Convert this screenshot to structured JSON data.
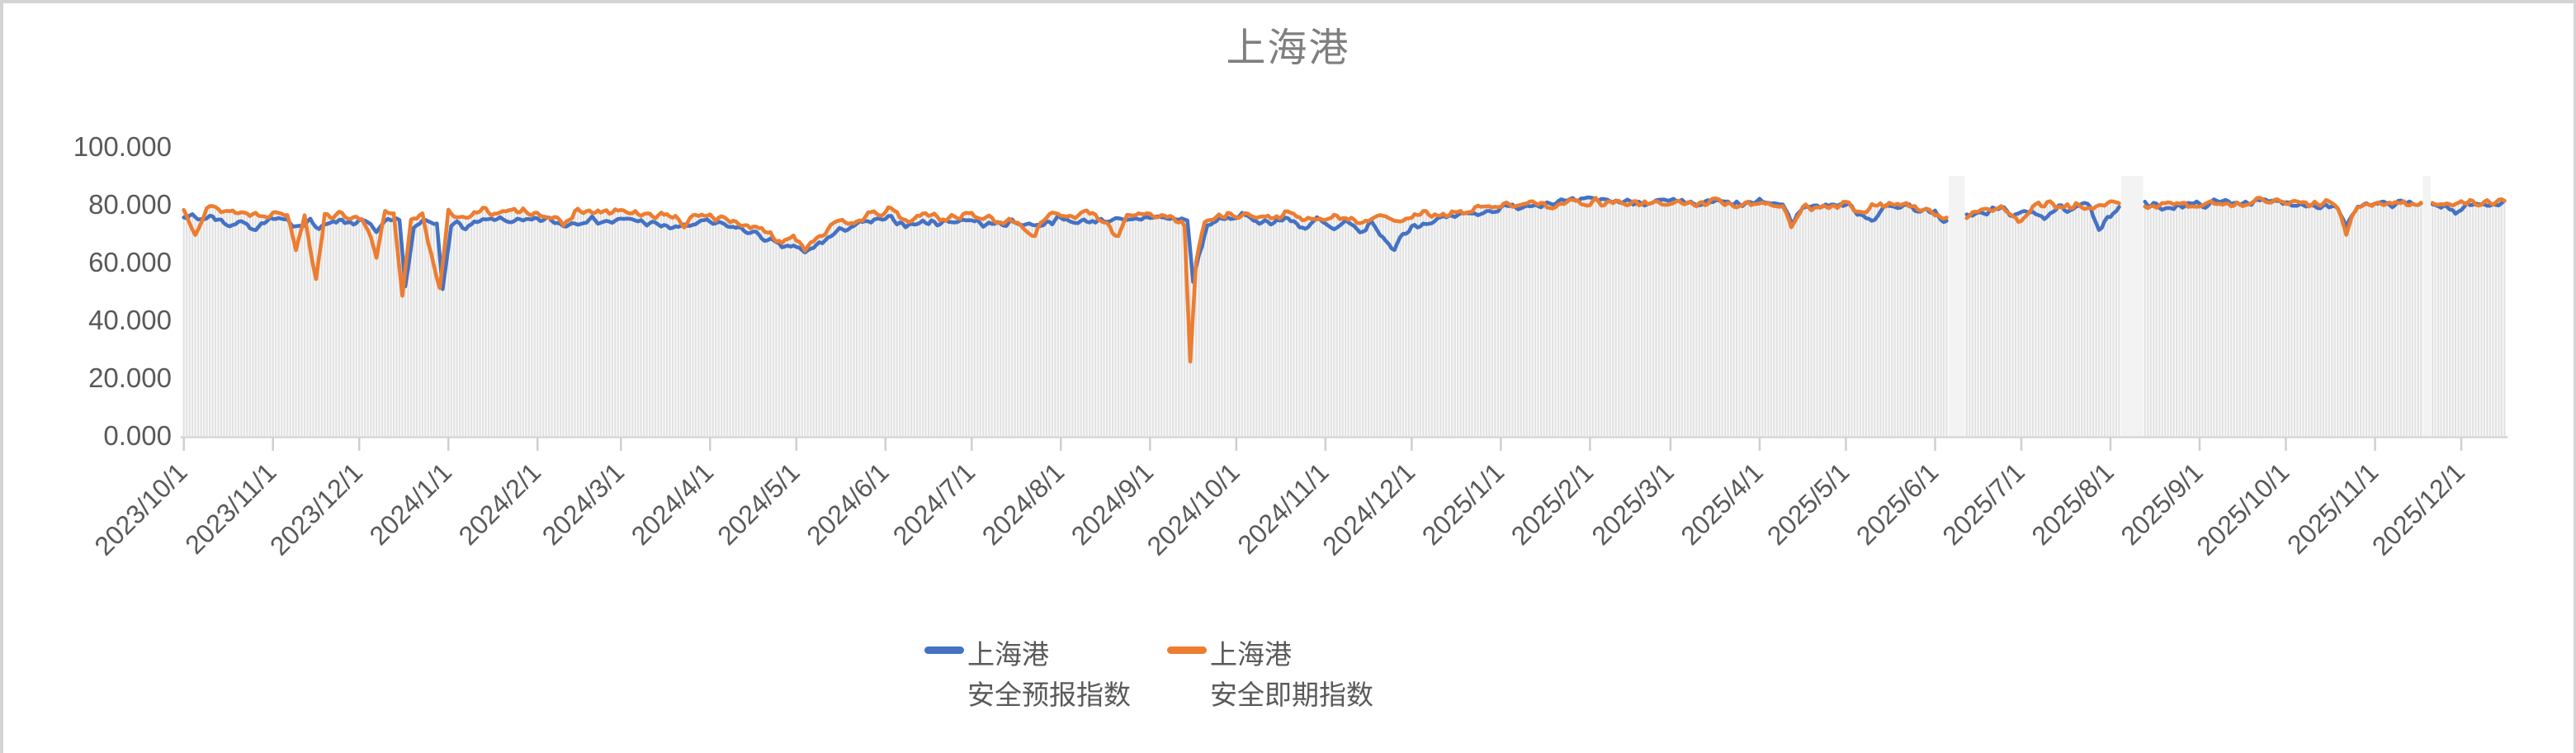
{
  "chart": {
    "title": "上海港",
    "axis_colors": {
      "line": "#d6d6d6",
      "tick": "#cfcfcf",
      "label": "#595959",
      "title": "#7f7f7f"
    },
    "legend": {
      "entries": [
        {
          "line1": "上海港",
          "line2": "安全预报指数",
          "color": "#4472C4"
        },
        {
          "line1": "上海港",
          "line2": "安全即期指数",
          "color": "#ED7D31"
        }
      ]
    }
  },
  "chart_data": {
    "type": "line",
    "title": "上海港",
    "xlabel": "",
    "ylabel": "",
    "ylim": [
      0,
      100
    ],
    "grid": false,
    "legend_position": "bottom",
    "x_start_date": "2023/10/1",
    "x_end_date": "2025/12/16",
    "x_unit": "day",
    "total_days": 807,
    "y_ticks": [
      {
        "v": 0,
        "label": "0.000"
      },
      {
        "v": 20,
        "label": "20.000"
      },
      {
        "v": 40,
        "label": "40.000"
      },
      {
        "v": 60,
        "label": "60.000"
      },
      {
        "v": 80,
        "label": "80.000"
      },
      {
        "v": 100,
        "label": "100.000"
      }
    ],
    "x_ticks": [
      {
        "day": 0,
        "label": "2023/10/1"
      },
      {
        "day": 31,
        "label": "2023/11/1"
      },
      {
        "day": 61,
        "label": "2023/12/1"
      },
      {
        "day": 92,
        "label": "2024/1/1"
      },
      {
        "day": 123,
        "label": "2024/2/1"
      },
      {
        "day": 152,
        "label": "2024/3/1"
      },
      {
        "day": 183,
        "label": "2024/4/1"
      },
      {
        "day": 213,
        "label": "2024/5/1"
      },
      {
        "day": 244,
        "label": "2024/6/1"
      },
      {
        "day": 274,
        "label": "2024/7/1"
      },
      {
        "day": 305,
        "label": "2024/8/1"
      },
      {
        "day": 336,
        "label": "2024/9/1"
      },
      {
        "day": 366,
        "label": "2024/10/1"
      },
      {
        "day": 397,
        "label": "2024/11/1"
      },
      {
        "day": 427,
        "label": "2024/12/1"
      },
      {
        "day": 458,
        "label": "2025/1/1"
      },
      {
        "day": 489,
        "label": "2025/2/1"
      },
      {
        "day": 517,
        "label": "2025/3/1"
      },
      {
        "day": 548,
        "label": "2025/4/1"
      },
      {
        "day": 578,
        "label": "2025/5/1"
      },
      {
        "day": 609,
        "label": "2025/6/1"
      },
      {
        "day": 639,
        "label": "2025/7/1"
      },
      {
        "day": 670,
        "label": "2025/8/1"
      },
      {
        "day": 701,
        "label": "2025/9/1"
      },
      {
        "day": 731,
        "label": "2025/10/1"
      },
      {
        "day": 762,
        "label": "2025/11/1"
      },
      {
        "day": 792,
        "label": "2025/12/1"
      }
    ],
    "data_gaps_day_ranges": [
      [
        614,
        619
      ],
      [
        674,
        681
      ],
      [
        779,
        781
      ]
    ],
    "background_bars": {
      "description": "daily light-gray columns from 0 up to max(series values) for that day",
      "color": "#e2e2e2",
      "gap_tint": "#f3f3f4"
    },
    "series": [
      {
        "name": "上海港 安全预报指数",
        "color": "#4472C4",
        "noise_amp": 1.4,
        "seed": 7,
        "anchors": [
          [
            0,
            77
          ],
          [
            5,
            75
          ],
          [
            10,
            76
          ],
          [
            16,
            73
          ],
          [
            20,
            74
          ],
          [
            25,
            72
          ],
          [
            30,
            75
          ],
          [
            36,
            74
          ],
          [
            40,
            73
          ],
          [
            44,
            75
          ],
          [
            47,
            71
          ],
          [
            52,
            75
          ],
          [
            58,
            74
          ],
          [
            63,
            74
          ],
          [
            67,
            71
          ],
          [
            71,
            74
          ],
          [
            75,
            74
          ],
          [
            77,
            52
          ],
          [
            80,
            72
          ],
          [
            84,
            74
          ],
          [
            88,
            73
          ],
          [
            90,
            51
          ],
          [
            93,
            74
          ],
          [
            98,
            72
          ],
          [
            103,
            74
          ],
          [
            110,
            75
          ],
          [
            118,
            74
          ],
          [
            126,
            75
          ],
          [
            132,
            73
          ],
          [
            140,
            75
          ],
          [
            148,
            74
          ],
          [
            156,
            75
          ],
          [
            164,
            73
          ],
          [
            172,
            72
          ],
          [
            180,
            74
          ],
          [
            188,
            73
          ],
          [
            196,
            71
          ],
          [
            203,
            68
          ],
          [
            208,
            65
          ],
          [
            212,
            66
          ],
          [
            216,
            63
          ],
          [
            220,
            66
          ],
          [
            225,
            69
          ],
          [
            230,
            72
          ],
          [
            238,
            74
          ],
          [
            246,
            75
          ],
          [
            252,
            73
          ],
          [
            258,
            74
          ],
          [
            265,
            74
          ],
          [
            272,
            75
          ],
          [
            280,
            73
          ],
          [
            288,
            74
          ],
          [
            296,
            73
          ],
          [
            304,
            75
          ],
          [
            312,
            74
          ],
          [
            320,
            75
          ],
          [
            328,
            74
          ],
          [
            336,
            76
          ],
          [
            344,
            75
          ],
          [
            349,
            75
          ],
          [
            351,
            53
          ],
          [
            353,
            63
          ],
          [
            356,
            72
          ],
          [
            360,
            75
          ],
          [
            368,
            76
          ],
          [
            376,
            74
          ],
          [
            384,
            75
          ],
          [
            390,
            72
          ],
          [
            394,
            75
          ],
          [
            400,
            71
          ],
          [
            404,
            74
          ],
          [
            409,
            70
          ],
          [
            413,
            74
          ],
          [
            418,
            67
          ],
          [
            421,
            65
          ],
          [
            424,
            70
          ],
          [
            428,
            73
          ],
          [
            434,
            74
          ],
          [
            440,
            76
          ],
          [
            448,
            77
          ],
          [
            454,
            78
          ],
          [
            460,
            79
          ],
          [
            468,
            80
          ],
          [
            476,
            81
          ],
          [
            484,
            81
          ],
          [
            492,
            82
          ],
          [
            500,
            81
          ],
          [
            508,
            81
          ],
          [
            517,
            81
          ],
          [
            525,
            80
          ],
          [
            533,
            81
          ],
          [
            541,
            80
          ],
          [
            550,
            81
          ],
          [
            556,
            80
          ],
          [
            559,
            74
          ],
          [
            563,
            79
          ],
          [
            570,
            80
          ],
          [
            578,
            80
          ],
          [
            583,
            77
          ],
          [
            587,
            75
          ],
          [
            592,
            79
          ],
          [
            598,
            80
          ],
          [
            605,
            78
          ],
          [
            609,
            77
          ],
          [
            612,
            73
          ],
          [
            613,
            74
          ],
          [
            620,
            76
          ],
          [
            626,
            77
          ],
          [
            632,
            79
          ],
          [
            638,
            76
          ],
          [
            643,
            78
          ],
          [
            647,
            76
          ],
          [
            652,
            79
          ],
          [
            656,
            77
          ],
          [
            660,
            80
          ],
          [
            663,
            79
          ],
          [
            666,
            72
          ],
          [
            669,
            76
          ],
          [
            673,
            79
          ],
          [
            682,
            80
          ],
          [
            688,
            79
          ],
          [
            695,
            80
          ],
          [
            701,
            80
          ],
          [
            708,
            81
          ],
          [
            716,
            81
          ],
          [
            724,
            81
          ],
          [
            731,
            81
          ],
          [
            738,
            80
          ],
          [
            745,
            80
          ],
          [
            749,
            79
          ],
          [
            752,
            73
          ],
          [
            756,
            79
          ],
          [
            762,
            80
          ],
          [
            768,
            80
          ],
          [
            774,
            81
          ],
          [
            778,
            80
          ],
          [
            782,
            80
          ],
          [
            786,
            80
          ],
          [
            790,
            77
          ],
          [
            794,
            80
          ],
          [
            800,
            80
          ],
          [
            807,
            81
          ]
        ]
      },
      {
        "name": "上海港 安全即期指数",
        "color": "#ED7D31",
        "noise_amp": 1.6,
        "seed": 13,
        "anchors": [
          [
            0,
            78
          ],
          [
            4,
            71
          ],
          [
            8,
            79
          ],
          [
            15,
            78
          ],
          [
            22,
            77
          ],
          [
            30,
            77
          ],
          [
            36,
            77
          ],
          [
            39,
            65
          ],
          [
            42,
            77
          ],
          [
            46,
            54
          ],
          [
            49,
            77
          ],
          [
            55,
            76
          ],
          [
            62,
            76
          ],
          [
            67,
            62
          ],
          [
            70,
            77
          ],
          [
            73,
            76
          ],
          [
            76,
            48
          ],
          [
            79,
            75
          ],
          [
            83,
            77
          ],
          [
            89,
            50
          ],
          [
            92,
            77
          ],
          [
            98,
            76
          ],
          [
            105,
            78
          ],
          [
            112,
            77
          ],
          [
            120,
            78
          ],
          [
            128,
            76
          ],
          [
            132,
            72
          ],
          [
            136,
            78
          ],
          [
            145,
            77
          ],
          [
            152,
            78
          ],
          [
            160,
            76
          ],
          [
            168,
            77
          ],
          [
            174,
            73
          ],
          [
            180,
            77
          ],
          [
            188,
            75
          ],
          [
            196,
            73
          ],
          [
            203,
            70
          ],
          [
            208,
            67
          ],
          [
            212,
            70
          ],
          [
            216,
            65
          ],
          [
            220,
            69
          ],
          [
            225,
            72
          ],
          [
            230,
            74
          ],
          [
            238,
            76
          ],
          [
            246,
            78
          ],
          [
            252,
            74
          ],
          [
            258,
            77
          ],
          [
            265,
            75
          ],
          [
            272,
            77
          ],
          [
            280,
            75
          ],
          [
            288,
            74
          ],
          [
            296,
            70
          ],
          [
            300,
            77
          ],
          [
            308,
            76
          ],
          [
            316,
            77
          ],
          [
            325,
            69
          ],
          [
            328,
            77
          ],
          [
            336,
            77
          ],
          [
            344,
            75
          ],
          [
            348,
            73
          ],
          [
            350,
            27
          ],
          [
            352,
            60
          ],
          [
            355,
            74
          ],
          [
            360,
            76
          ],
          [
            368,
            77
          ],
          [
            376,
            75
          ],
          [
            384,
            77
          ],
          [
            392,
            74
          ],
          [
            400,
            76
          ],
          [
            408,
            74
          ],
          [
            416,
            76
          ],
          [
            424,
            75
          ],
          [
            430,
            77
          ],
          [
            438,
            76
          ],
          [
            446,
            78
          ],
          [
            454,
            79
          ],
          [
            460,
            80
          ],
          [
            468,
            81
          ],
          [
            476,
            80
          ],
          [
            484,
            81
          ],
          [
            492,
            81
          ],
          [
            500,
            81
          ],
          [
            508,
            80
          ],
          [
            517,
            81
          ],
          [
            525,
            80
          ],
          [
            533,
            81
          ],
          [
            541,
            80
          ],
          [
            550,
            81
          ],
          [
            556,
            79
          ],
          [
            559,
            72
          ],
          [
            563,
            79
          ],
          [
            570,
            80
          ],
          [
            578,
            80
          ],
          [
            584,
            78
          ],
          [
            590,
            80
          ],
          [
            598,
            80
          ],
          [
            605,
            78
          ],
          [
            610,
            76
          ],
          [
            613,
            75
          ],
          [
            620,
            76
          ],
          [
            626,
            78
          ],
          [
            632,
            79
          ],
          [
            638,
            74
          ],
          [
            643,
            79
          ],
          [
            650,
            80
          ],
          [
            656,
            79
          ],
          [
            660,
            80
          ],
          [
            664,
            78
          ],
          [
            668,
            80
          ],
          [
            673,
            80
          ],
          [
            682,
            80
          ],
          [
            688,
            80
          ],
          [
            695,
            80
          ],
          [
            701,
            80
          ],
          [
            708,
            81
          ],
          [
            716,
            80
          ],
          [
            724,
            82
          ],
          [
            731,
            81
          ],
          [
            738,
            80
          ],
          [
            745,
            81
          ],
          [
            749,
            78
          ],
          [
            752,
            71
          ],
          [
            756,
            79
          ],
          [
            762,
            80
          ],
          [
            768,
            81
          ],
          [
            774,
            80
          ],
          [
            778,
            81
          ],
          [
            782,
            80
          ],
          [
            788,
            81
          ],
          [
            794,
            80
          ],
          [
            800,
            81
          ],
          [
            807,
            81
          ]
        ]
      }
    ]
  }
}
